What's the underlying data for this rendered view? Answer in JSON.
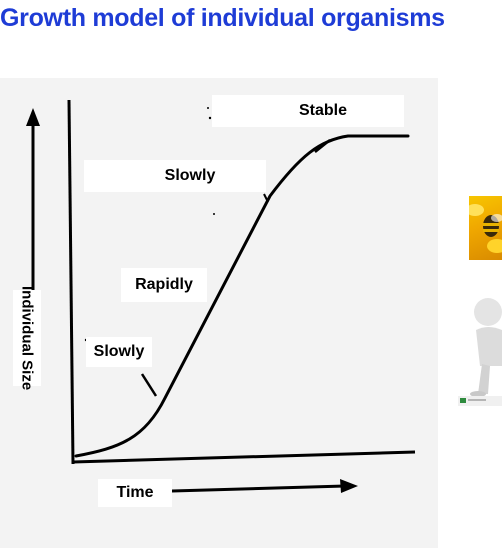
{
  "title": "Growth model of individual organisms",
  "diagram": {
    "y_axis_label": "Individual Size",
    "x_axis_label": "Time",
    "phases": {
      "stable": "Stable",
      "slowly_upper": "Slowly",
      "rapidly": "Rapidly",
      "slowly_lower": "Slowly"
    }
  },
  "thumbnails": {
    "top": "bee-on-flower-image",
    "bottom": "3d-figure-image"
  },
  "colors": {
    "title": "#1e3cd6",
    "panel": "#f3f3f3",
    "ink": "#000000"
  }
}
